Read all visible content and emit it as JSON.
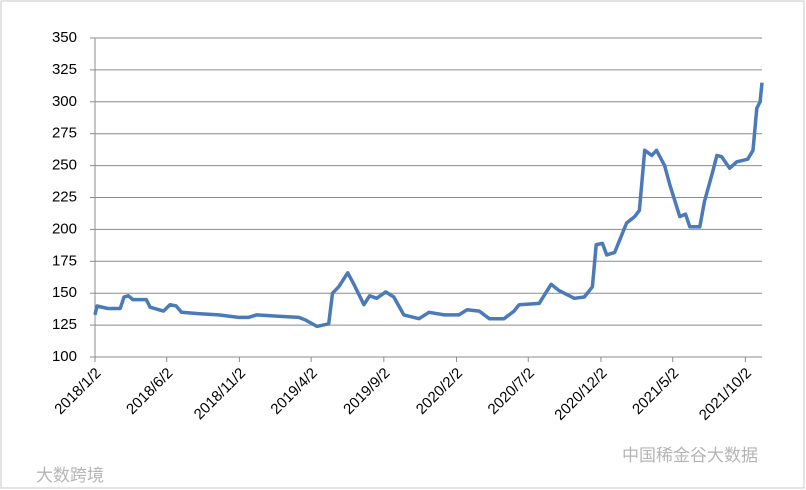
{
  "chart_data": {
    "type": "line",
    "x": [
      "2018/1/2",
      "2018/1/6",
      "2018/1/29",
      "2018/2/24",
      "2018/3/4",
      "2018/3/13",
      "2018/3/23",
      "2018/4/20",
      "2018/4/28",
      "2018/5/26",
      "2018/6/9",
      "2018/6/22",
      "2018/7/3",
      "2018/8/7",
      "2018/9/19",
      "2018/10/31",
      "2018/11/21",
      "2018/12/8",
      "2019/1/23",
      "2019/3/7",
      "2019/3/21",
      "2019/4/14",
      "2019/5/9",
      "2019/5/17",
      "2019/5/30",
      "2019/6/18",
      "2019/7/1",
      "2019/7/22",
      "2019/8/3",
      "2019/8/18",
      "2019/9/6",
      "2019/9/23",
      "2019/10/14",
      "2019/11/15",
      "2019/12/6",
      "2020/1/7",
      "2020/2/7",
      "2020/2/24",
      "2020/3/21",
      "2020/4/11",
      "2020/5/12",
      "2020/6/2",
      "2020/6/13",
      "2020/7/25",
      "2020/8/19",
      "2020/9/5",
      "2020/10/7",
      "2020/10/28",
      "2020/11/14",
      "2020/11/22",
      "2020/12/5",
      "2020/12/14",
      "2020/12/31",
      "2021/1/25",
      "2021/2/11",
      "2021/2/21",
      "2021/3/4",
      "2021/3/19",
      "2021/3/29",
      "2021/4/15",
      "2021/4/26",
      "2021/5/17",
      "2021/5/29",
      "2021/6/7",
      "2021/6/28",
      "2021/7/8",
      "2021/7/25",
      "2021/8/3",
      "2021/8/13",
      "2021/8/30",
      "2021/9/14",
      "2021/10/7",
      "2021/10/18",
      "2021/10/26",
      "2021/11/2",
      "2021/11/6"
    ],
    "series": [
      {
        "color": "#4a7ab8",
        "values": [
          133,
          140,
          138,
          138,
          147,
          148,
          145,
          145,
          139,
          136,
          141,
          140,
          135,
          134,
          133,
          131,
          131,
          133,
          132,
          131,
          129,
          124,
          126,
          150,
          155,
          166,
          157,
          141,
          148,
          146,
          151,
          147,
          133,
          130,
          135,
          133,
          133,
          137,
          136,
          130,
          130,
          136,
          141,
          142,
          157,
          152,
          146,
          147,
          155,
          188,
          189,
          180,
          182,
          205,
          210,
          215,
          262,
          258,
          262,
          250,
          235,
          210,
          212,
          202,
          202,
          222,
          245,
          258,
          257,
          248,
          253,
          255,
          262,
          295,
          300,
          315
        ]
      }
    ],
    "ylim": [
      100,
      350
    ],
    "yticks": [
      100,
      125,
      150,
      175,
      200,
      225,
      250,
      275,
      300,
      325,
      350
    ],
    "xticks": [
      "2018/1/2",
      "2018/6/2",
      "2018/11/2",
      "2019/4/2",
      "2019/9/2",
      "2020/2/2",
      "2020/7/2",
      "2020/12/2",
      "2021/5/2",
      "2021/10/2"
    ],
    "grid": true
  },
  "watermarks": {
    "left": "大数跨境",
    "right": "中国稀金谷大数据"
  }
}
